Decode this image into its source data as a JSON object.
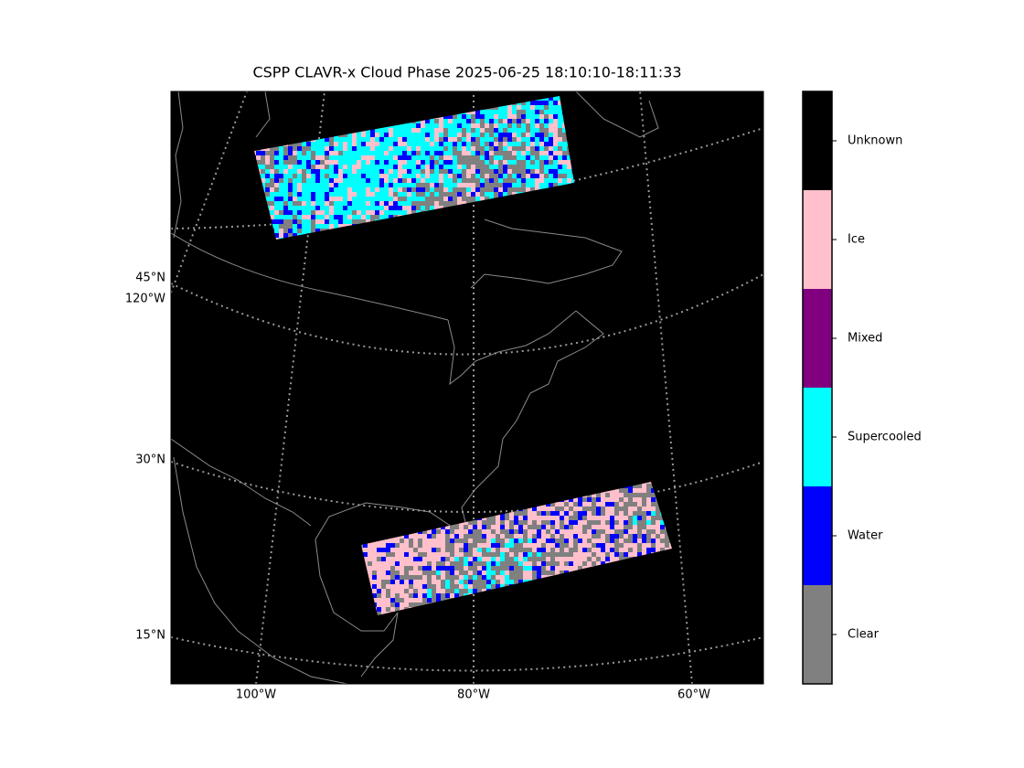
{
  "title": "CSPP CLAVR-x Cloud Phase 2025-06-25 18:10:10-18:11:33",
  "map": {
    "lat_labels": [
      "45°N",
      "30°N",
      "15°N"
    ],
    "lon_label_left": "120°W",
    "lon_labels_bottom": [
      "100°W",
      "80°W",
      "60°W"
    ]
  },
  "colorbar": {
    "classes": [
      {
        "label": "Unknown",
        "color": "#000000"
      },
      {
        "label": "Ice",
        "color": "#ffc0cb"
      },
      {
        "label": "Mixed",
        "color": "#800080"
      },
      {
        "label": "Supercooled",
        "color": "#00ffff"
      },
      {
        "label": "Water",
        "color": "#0000ff"
      },
      {
        "label": "Clear",
        "color": "#808080"
      }
    ]
  }
}
